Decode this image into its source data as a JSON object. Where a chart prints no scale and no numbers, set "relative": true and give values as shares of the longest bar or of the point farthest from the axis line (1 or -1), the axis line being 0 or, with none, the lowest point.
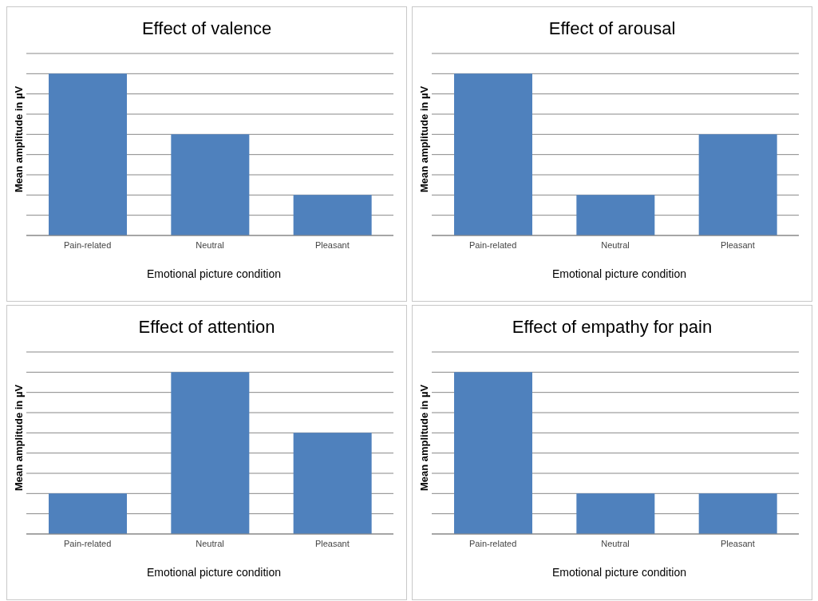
{
  "chart_data": [
    {
      "type": "bar",
      "title": "Effect of valence",
      "xlabel": "Emotional picture condition",
      "ylabel": "Mean amplitude in µV",
      "categories": [
        "Pain-related",
        "Neutral",
        "Pleasant"
      ],
      "values": [
        1,
        0.625,
        0.25
      ],
      "color": "#4f81bd",
      "relative": true,
      "grid": "y"
    },
    {
      "type": "bar",
      "title": "Effect of arousal",
      "xlabel": "Emotional picture condition",
      "ylabel": "Mean amplitude in µV",
      "categories": [
        "Pain-related",
        "Neutral",
        "Pleasant"
      ],
      "values": [
        1,
        0.25,
        0.625
      ],
      "color": "#4f81bd",
      "relative": true,
      "grid": "y"
    },
    {
      "type": "bar",
      "title": "Effect of attention",
      "xlabel": "Emotional picture condition",
      "ylabel": "Mean amplitude in µV",
      "categories": [
        "Pain-related",
        "Neutral",
        "Pleasant"
      ],
      "values": [
        0.25,
        1,
        0.625
      ],
      "color": "#4f81bd",
      "relative": true,
      "grid": "y"
    },
    {
      "type": "bar",
      "title": "Effect of empathy for pain",
      "xlabel": "Emotional picture condition",
      "ylabel": "Mean amplitude in µV",
      "categories": [
        "Pain-related",
        "Neutral",
        "Pleasant"
      ],
      "values": [
        1,
        0.25,
        0.25
      ],
      "color": "#4f81bd",
      "relative": true,
      "grid": "y"
    }
  ]
}
